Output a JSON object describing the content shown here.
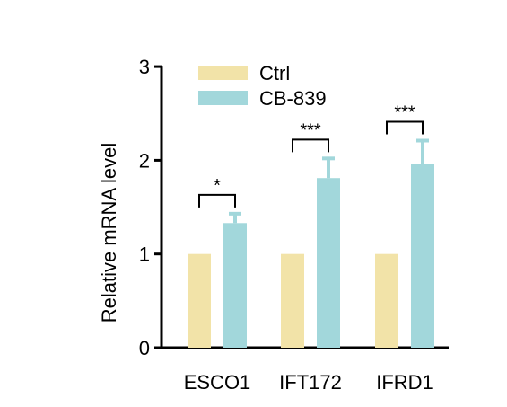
{
  "chart_data": {
    "type": "bar",
    "categories": [
      "ESCO1",
      "IFT172",
      "IFRD1"
    ],
    "series": [
      {
        "name": "Ctrl",
        "color": "#F2E3A8",
        "values": [
          1,
          1,
          1
        ],
        "errors": [
          0,
          0,
          0
        ]
      },
      {
        "name": "CB-839",
        "color": "#A2D7DB",
        "values": [
          1.33,
          1.81,
          1.96
        ],
        "errors": [
          0.1,
          0.21,
          0.25
        ]
      }
    ],
    "significance": [
      "*",
      "***",
      "***"
    ],
    "xlabel": "",
    "ylabel": "Relative mRNA level",
    "ylim": [
      0,
      3
    ],
    "yticks": [
      0,
      1,
      2,
      3
    ],
    "legend_position": "top-left",
    "grid": false
  }
}
